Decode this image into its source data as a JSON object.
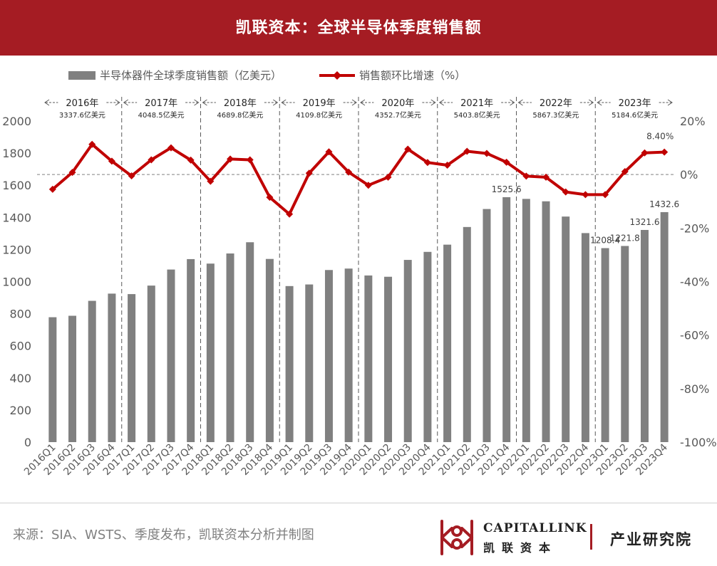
{
  "header": {
    "title": "凯联资本：全球半导体季度销售额"
  },
  "chart_data": {
    "type": "bar+line",
    "categories": [
      "2016Q1",
      "2016Q2",
      "2016Q3",
      "2016Q4",
      "2017Q1",
      "2017Q2",
      "2017Q3",
      "2017Q4",
      "2018Q1",
      "2018Q2",
      "2018Q3",
      "2018Q4",
      "2019Q1",
      "2019Q2",
      "2019Q3",
      "2019Q4",
      "2020Q1",
      "2020Q2",
      "2020Q3",
      "2020Q4",
      "2021Q1",
      "2021Q2",
      "2021Q3",
      "2021Q4",
      "2022Q1",
      "2022Q2",
      "2022Q3",
      "2022Q4",
      "2023Q1",
      "2023Q2",
      "2023Q3",
      "2023Q4"
    ],
    "series": [
      {
        "name": "半导体器件全球季度销售额（亿美元）",
        "axis": "left",
        "type": "bar",
        "color": "#808080",
        "values": [
          778,
          787,
          880,
          925,
          922,
          975,
          1075,
          1140,
          1112,
          1175,
          1245,
          1141,
          972,
          982,
          1072,
          1081,
          1038,
          1030,
          1135,
          1185,
          1230,
          1340,
          1452,
          1525.6,
          1515,
          1500,
          1405,
          1302,
          1208.4,
          1221.8,
          1321.6,
          1432.6
        ]
      },
      {
        "name": "销售额环比增速（%）",
        "axis": "right",
        "type": "line",
        "color": "#c00000",
        "values": [
          -5.5,
          0.8,
          11.3,
          5.0,
          -0.5,
          5.5,
          10.0,
          5.4,
          -2.5,
          5.8,
          5.5,
          -8.5,
          -14.8,
          0.5,
          8.5,
          0.9,
          -4.0,
          -1.0,
          9.5,
          4.5,
          3.5,
          8.7,
          7.9,
          4.6,
          -0.6,
          -1.0,
          -6.5,
          -7.5,
          -7.5,
          1.1,
          8.1,
          8.4
        ]
      }
    ],
    "bar_labels": [
      {
        "index": 23,
        "text": "1525.6"
      },
      {
        "index": 28,
        "text": "1208.4"
      },
      {
        "index": 29,
        "text": "1221.8"
      },
      {
        "index": 30,
        "text": "1321.6"
      },
      {
        "index": 31,
        "text": "1432.6"
      }
    ],
    "line_labels": [
      {
        "index": 31,
        "text": "8.40%"
      }
    ],
    "y_left": {
      "min": 0,
      "max": 2000,
      "ticks": [
        "0",
        "200",
        "400",
        "600",
        "800",
        "1000",
        "1200",
        "1400",
        "1600",
        "1800",
        "2000"
      ]
    },
    "y_right": {
      "min": -100,
      "max": 20,
      "ticks": [
        "-100%",
        "-80%",
        "-60%",
        "-40%",
        "-20%",
        "0%",
        "20%"
      ]
    },
    "years": [
      {
        "label": "2016年",
        "total": "3337.6亿美元"
      },
      {
        "label": "2017年",
        "total": "4048.5亿美元"
      },
      {
        "label": "2018年",
        "total": "4689.8亿美元"
      },
      {
        "label": "2019年",
        "total": "4109.8亿美元"
      },
      {
        "label": "2020年",
        "total": "4352.7亿美元"
      },
      {
        "label": "2021年",
        "total": "5403.8亿美元"
      },
      {
        "label": "2022年",
        "total": "5867.3亿美元"
      },
      {
        "label": "2023年",
        "total": "5184.6亿美元"
      }
    ],
    "legend_position": "top-left",
    "grid": false
  },
  "footer": {
    "source": "来源：SIA、WSTS、季度发布，凯联资本分析并制图",
    "brand_en": "CAPITALLINK",
    "brand_cn": "凯联资本",
    "brand_sub": "产业研究院"
  }
}
